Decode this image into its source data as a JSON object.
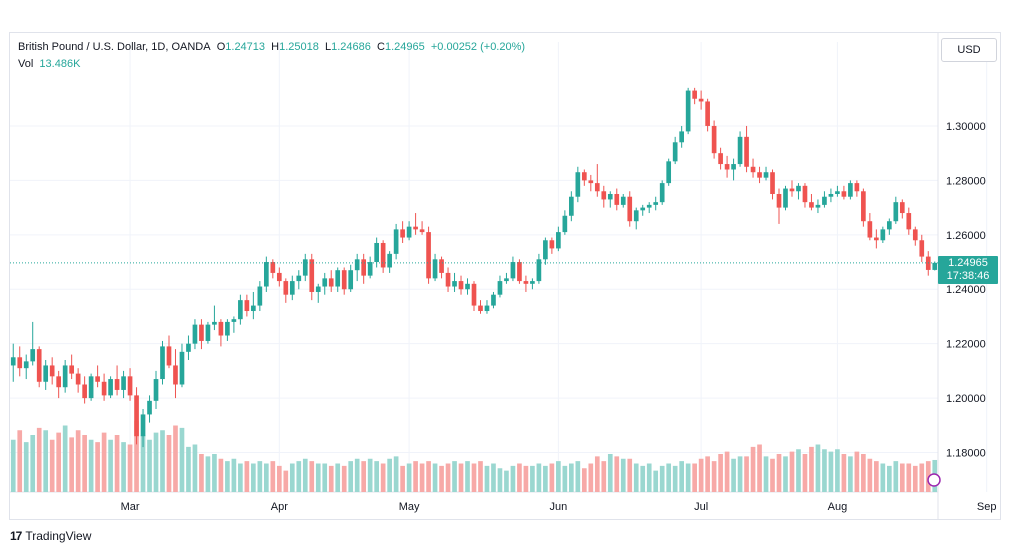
{
  "header": {
    "symbol": "British Pound / U.S. Dollar, 1D, OANDA",
    "open_label": "O",
    "open": "1.24713",
    "high_label": "H",
    "high": "1.25018",
    "low_label": "L",
    "low": "1.24686",
    "close_label": "C",
    "close": "1.24965",
    "change": "+0.00252 (+0.20%)",
    "volume_label": "Vol",
    "volume": "13.486K"
  },
  "currency_button": "USD",
  "last_price": {
    "price": "1.24965",
    "countdown": "17:38:46"
  },
  "brand": "TradingView",
  "colors": {
    "up": "#26a69a",
    "down": "#ef5350",
    "vol_up": "#9ad7d0",
    "vol_down": "#f7a9a7",
    "grid": "#f0f3fa"
  },
  "chart_data": {
    "type": "candlestick",
    "y_axis_ticks": [
      "1.18000",
      "1.20000",
      "1.22000",
      "1.24000",
      "1.26000",
      "1.28000",
      "1.30000"
    ],
    "x_axis_ticks": [
      {
        "label": "Mar",
        "index": 18
      },
      {
        "label": "Apr",
        "index": 41
      },
      {
        "label": "May",
        "index": 61
      },
      {
        "label": "Jun",
        "index": 84
      },
      {
        "label": "Jul",
        "index": 106
      },
      {
        "label": "Aug",
        "index": 127
      },
      {
        "label": "Sep",
        "index": 150
      }
    ],
    "ylim": [
      1.1655,
      1.3235
    ],
    "volume_range": [
      0,
      40
    ],
    "candles": [
      [
        1.212,
        1.22,
        1.206,
        1.215,
        22
      ],
      [
        1.215,
        1.219,
        1.208,
        1.211,
        26
      ],
      [
        1.211,
        1.216,
        1.207,
        1.2135,
        21
      ],
      [
        1.2135,
        1.228,
        1.212,
        1.218,
        24
      ],
      [
        1.218,
        1.219,
        1.204,
        1.206,
        27
      ],
      [
        1.206,
        1.214,
        1.203,
        1.212,
        26
      ],
      [
        1.212,
        1.215,
        1.205,
        1.208,
        22
      ],
      [
        1.208,
        1.21,
        1.2,
        1.204,
        25
      ],
      [
        1.204,
        1.214,
        1.202,
        1.212,
        28
      ],
      [
        1.212,
        1.216,
        1.207,
        1.209,
        23
      ],
      [
        1.209,
        1.211,
        1.202,
        1.205,
        26
      ],
      [
        1.205,
        1.208,
        1.198,
        1.2,
        24
      ],
      [
        1.2,
        1.209,
        1.199,
        1.208,
        22
      ],
      [
        1.208,
        1.212,
        1.204,
        1.206,
        21
      ],
      [
        1.206,
        1.209,
        1.199,
        1.201,
        25
      ],
      [
        1.201,
        1.208,
        1.2,
        1.207,
        22
      ],
      [
        1.207,
        1.212,
        1.201,
        1.203,
        24
      ],
      [
        1.203,
        1.21,
        1.2,
        1.208,
        21
      ],
      [
        1.208,
        1.211,
        1.199,
        1.201,
        20
      ],
      [
        1.201,
        1.204,
        1.183,
        1.186,
        30
      ],
      [
        1.186,
        1.196,
        1.182,
        1.194,
        24
      ],
      [
        1.194,
        1.201,
        1.191,
        1.199,
        22
      ],
      [
        1.199,
        1.21,
        1.196,
        1.207,
        25
      ],
      [
        1.207,
        1.221,
        1.205,
        1.219,
        26
      ],
      [
        1.219,
        1.223,
        1.211,
        1.212,
        24
      ],
      [
        1.212,
        1.218,
        1.2,
        1.205,
        28
      ],
      [
        1.205,
        1.22,
        1.204,
        1.217,
        27
      ],
      [
        1.217,
        1.223,
        1.214,
        1.22,
        19
      ],
      [
        1.22,
        1.229,
        1.218,
        1.227,
        20
      ],
      [
        1.227,
        1.229,
        1.218,
        1.221,
        16
      ],
      [
        1.221,
        1.228,
        1.22,
        1.227,
        15
      ],
      [
        1.227,
        1.234,
        1.225,
        1.228,
        16
      ],
      [
        1.228,
        1.229,
        1.219,
        1.223,
        14
      ],
      [
        1.223,
        1.229,
        1.221,
        1.228,
        13
      ],
      [
        1.228,
        1.23,
        1.224,
        1.229,
        14
      ],
      [
        1.229,
        1.238,
        1.227,
        1.236,
        12
      ],
      [
        1.236,
        1.238,
        1.23,
        1.232,
        13
      ],
      [
        1.232,
        1.239,
        1.229,
        1.234,
        12
      ],
      [
        1.234,
        1.243,
        1.232,
        1.241,
        13
      ],
      [
        1.241,
        1.252,
        1.239,
        1.25,
        12
      ],
      [
        1.25,
        1.251,
        1.244,
        1.246,
        13
      ],
      [
        1.246,
        1.248,
        1.241,
        1.243,
        11
      ],
      [
        1.243,
        1.244,
        1.235,
        1.238,
        9
      ],
      [
        1.238,
        1.245,
        1.236,
        1.243,
        12
      ],
      [
        1.243,
        1.247,
        1.24,
        1.245,
        13
      ],
      [
        1.245,
        1.253,
        1.243,
        1.251,
        14
      ],
      [
        1.251,
        1.253,
        1.236,
        1.239,
        13
      ],
      [
        1.239,
        1.242,
        1.235,
        1.241,
        12
      ],
      [
        1.241,
        1.246,
        1.238,
        1.244,
        12
      ],
      [
        1.244,
        1.247,
        1.239,
        1.241,
        11
      ],
      [
        1.241,
        1.248,
        1.239,
        1.247,
        12
      ],
      [
        1.247,
        1.248,
        1.238,
        1.24,
        11
      ],
      [
        1.24,
        1.249,
        1.239,
        1.247,
        13
      ],
      [
        1.247,
        1.253,
        1.243,
        1.251,
        14
      ],
      [
        1.251,
        1.253,
        1.242,
        1.245,
        13
      ],
      [
        1.245,
        1.252,
        1.244,
        1.25,
        14
      ],
      [
        1.25,
        1.259,
        1.248,
        1.257,
        13
      ],
      [
        1.257,
        1.258,
        1.246,
        1.248,
        12
      ],
      [
        1.248,
        1.254,
        1.246,
        1.253,
        14
      ],
      [
        1.253,
        1.264,
        1.251,
        1.262,
        15
      ],
      [
        1.262,
        1.265,
        1.257,
        1.259,
        11
      ],
      [
        1.259,
        1.265,
        1.258,
        1.263,
        12
      ],
      [
        1.263,
        1.268,
        1.26,
        1.262,
        13
      ],
      [
        1.262,
        1.265,
        1.26,
        1.261,
        12
      ],
      [
        1.261,
        1.263,
        1.242,
        1.244,
        13
      ],
      [
        1.244,
        1.253,
        1.243,
        1.251,
        12
      ],
      [
        1.251,
        1.252,
        1.244,
        1.246,
        11
      ],
      [
        1.246,
        1.248,
        1.239,
        1.241,
        12
      ],
      [
        1.241,
        1.246,
        1.239,
        1.243,
        13
      ],
      [
        1.243,
        1.245,
        1.238,
        1.24,
        12
      ],
      [
        1.24,
        1.244,
        1.238,
        1.242,
        13
      ],
      [
        1.242,
        1.243,
        1.232,
        1.234,
        12
      ],
      [
        1.234,
        1.236,
        1.231,
        1.232,
        13
      ],
      [
        1.232,
        1.236,
        1.231,
        1.234,
        11
      ],
      [
        1.234,
        1.239,
        1.233,
        1.238,
        12
      ],
      [
        1.238,
        1.245,
        1.237,
        1.243,
        10
      ],
      [
        1.243,
        1.246,
        1.242,
        1.244,
        9
      ],
      [
        1.244,
        1.252,
        1.243,
        1.25,
        11
      ],
      [
        1.25,
        1.251,
        1.242,
        1.243,
        12
      ],
      [
        1.243,
        1.245,
        1.239,
        1.242,
        11
      ],
      [
        1.242,
        1.244,
        1.24,
        1.243,
        11
      ],
      [
        1.243,
        1.253,
        1.242,
        1.251,
        12
      ],
      [
        1.251,
        1.259,
        1.249,
        1.258,
        11
      ],
      [
        1.258,
        1.259,
        1.253,
        1.255,
        12
      ],
      [
        1.255,
        1.263,
        1.254,
        1.261,
        13
      ],
      [
        1.261,
        1.269,
        1.26,
        1.267,
        11
      ],
      [
        1.267,
        1.276,
        1.265,
        1.274,
        12
      ],
      [
        1.274,
        1.285,
        1.272,
        1.283,
        13
      ],
      [
        1.283,
        1.284,
        1.278,
        1.28,
        10
      ],
      [
        1.28,
        1.282,
        1.276,
        1.279,
        12
      ],
      [
        1.279,
        1.286,
        1.274,
        1.276,
        15
      ],
      [
        1.276,
        1.278,
        1.27,
        1.273,
        13
      ],
      [
        1.273,
        1.276,
        1.27,
        1.275,
        16
      ],
      [
        1.275,
        1.277,
        1.269,
        1.271,
        15
      ],
      [
        1.271,
        1.275,
        1.27,
        1.274,
        14
      ],
      [
        1.274,
        1.276,
        1.263,
        1.265,
        14
      ],
      [
        1.265,
        1.27,
        1.262,
        1.269,
        12
      ],
      [
        1.269,
        1.271,
        1.267,
        1.27,
        11
      ],
      [
        1.27,
        1.272,
        1.268,
        1.271,
        12
      ],
      [
        1.271,
        1.274,
        1.269,
        1.272,
        9
      ],
      [
        1.272,
        1.28,
        1.271,
        1.279,
        11
      ],
      [
        1.279,
        1.288,
        1.278,
        1.287,
        12
      ],
      [
        1.287,
        1.296,
        1.286,
        1.294,
        11
      ],
      [
        1.294,
        1.3,
        1.292,
        1.298,
        13
      ],
      [
        1.298,
        1.314,
        1.297,
        1.313,
        12
      ],
      [
        1.313,
        1.314,
        1.308,
        1.31,
        12
      ],
      [
        1.31,
        1.313,
        1.306,
        1.309,
        14
      ],
      [
        1.309,
        1.31,
        1.298,
        1.3,
        15
      ],
      [
        1.3,
        1.302,
        1.288,
        1.29,
        13
      ],
      [
        1.29,
        1.292,
        1.284,
        1.286,
        16
      ],
      [
        1.286,
        1.289,
        1.281,
        1.284,
        17
      ],
      [
        1.284,
        1.288,
        1.28,
        1.286,
        14
      ],
      [
        1.286,
        1.298,
        1.285,
        1.296,
        15
      ],
      [
        1.296,
        1.3,
        1.283,
        1.285,
        15
      ],
      [
        1.285,
        1.288,
        1.281,
        1.283,
        19
      ],
      [
        1.283,
        1.285,
        1.279,
        1.281,
        20
      ],
      [
        1.281,
        1.285,
        1.28,
        1.283,
        15
      ],
      [
        1.283,
        1.284,
        1.273,
        1.275,
        14
      ],
      [
        1.275,
        1.277,
        1.264,
        1.27,
        16
      ],
      [
        1.27,
        1.278,
        1.269,
        1.277,
        15
      ],
      [
        1.277,
        1.28,
        1.274,
        1.276,
        17
      ],
      [
        1.276,
        1.279,
        1.273,
        1.278,
        18
      ],
      [
        1.278,
        1.279,
        1.27,
        1.272,
        16
      ],
      [
        1.272,
        1.275,
        1.269,
        1.27,
        19
      ],
      [
        1.27,
        1.273,
        1.268,
        1.271,
        20
      ],
      [
        1.271,
        1.276,
        1.27,
        1.274,
        18
      ],
      [
        1.274,
        1.277,
        1.272,
        1.275,
        17
      ],
      [
        1.275,
        1.278,
        1.274,
        1.276,
        18
      ],
      [
        1.276,
        1.278,
        1.273,
        1.274,
        16
      ],
      [
        1.274,
        1.28,
        1.273,
        1.279,
        15
      ],
      [
        1.279,
        1.28,
        1.274,
        1.276,
        17
      ],
      [
        1.276,
        1.277,
        1.263,
        1.265,
        16
      ],
      [
        1.265,
        1.268,
        1.258,
        1.259,
        14
      ],
      [
        1.259,
        1.262,
        1.255,
        1.258,
        13
      ],
      [
        1.258,
        1.263,
        1.257,
        1.262,
        12
      ],
      [
        1.262,
        1.266,
        1.26,
        1.265,
        11
      ],
      [
        1.265,
        1.274,
        1.264,
        1.272,
        13
      ],
      [
        1.272,
        1.273,
        1.266,
        1.268,
        12
      ],
      [
        1.268,
        1.27,
        1.26,
        1.262,
        12
      ],
      [
        1.262,
        1.263,
        1.256,
        1.258,
        11
      ],
      [
        1.258,
        1.26,
        1.25,
        1.252,
        12
      ],
      [
        1.252,
        1.254,
        1.245,
        1.2471,
        13
      ],
      [
        1.2471,
        1.2502,
        1.2469,
        1.2497,
        13.486
      ]
    ]
  }
}
